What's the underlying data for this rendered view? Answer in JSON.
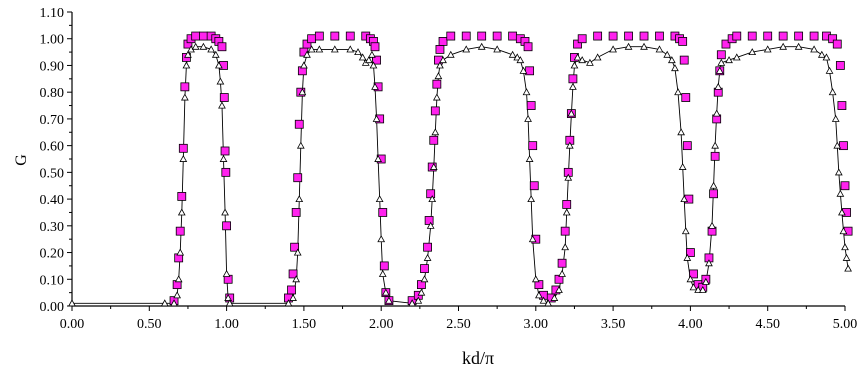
{
  "chart_data": {
    "type": "scatter",
    "title": "",
    "xlabel": "kd/π",
    "ylabel": "G",
    "xlim": [
      0,
      5
    ],
    "ylim": [
      0,
      1.1
    ],
    "x_ticks": [
      "0.00",
      "0.50",
      "1.00",
      "1.50",
      "2.00",
      "2.50",
      "3.00",
      "3.50",
      "4.00",
      "4.50",
      "5.00"
    ],
    "y_ticks": [
      "0.00",
      "0.10",
      "0.20",
      "0.30",
      "0.40",
      "0.50",
      "0.60",
      "0.70",
      "0.80",
      "0.90",
      "1.00",
      "1.10"
    ],
    "grid": false,
    "legend": "none",
    "series": [
      {
        "marker": "square",
        "color": "#ff22ee",
        "edge_color": "#000000",
        "line": false,
        "points": [
          [
            0.66,
            0.02
          ],
          [
            0.68,
            0.08
          ],
          [
            0.69,
            0.18
          ],
          [
            0.7,
            0.28
          ],
          [
            0.71,
            0.41
          ],
          [
            0.72,
            0.59
          ],
          [
            0.73,
            0.82
          ],
          [
            0.74,
            0.93
          ],
          [
            0.75,
            0.98
          ],
          [
            0.77,
            1.0
          ],
          [
            0.8,
            1.01
          ],
          [
            0.85,
            1.01
          ],
          [
            0.9,
            1.01
          ],
          [
            0.93,
            1.0
          ],
          [
            0.95,
            0.99
          ],
          [
            0.97,
            0.97
          ],
          [
            0.98,
            0.9
          ],
          [
            0.985,
            0.78
          ],
          [
            0.99,
            0.58
          ],
          [
            0.995,
            0.5
          ],
          [
            1.0,
            0.3
          ],
          [
            1.01,
            0.1
          ],
          [
            1.02,
            0.03
          ],
          [
            1.4,
            0.03
          ],
          [
            1.42,
            0.06
          ],
          [
            1.43,
            0.12
          ],
          [
            1.44,
            0.22
          ],
          [
            1.45,
            0.35
          ],
          [
            1.46,
            0.48
          ],
          [
            1.47,
            0.68
          ],
          [
            1.48,
            0.8
          ],
          [
            1.49,
            0.88
          ],
          [
            1.5,
            0.95
          ],
          [
            1.52,
            0.98
          ],
          [
            1.55,
            1.0
          ],
          [
            1.6,
            1.01
          ],
          [
            1.7,
            1.01
          ],
          [
            1.8,
            1.01
          ],
          [
            1.9,
            1.01
          ],
          [
            1.93,
            1.0
          ],
          [
            1.95,
            0.99
          ],
          [
            1.96,
            0.97
          ],
          [
            1.97,
            0.92
          ],
          [
            1.98,
            0.82
          ],
          [
            1.99,
            0.7
          ],
          [
            2.0,
            0.55
          ],
          [
            2.01,
            0.35
          ],
          [
            2.02,
            0.15
          ],
          [
            2.03,
            0.05
          ],
          [
            2.05,
            0.02
          ],
          [
            2.2,
            0.02
          ],
          [
            2.24,
            0.04
          ],
          [
            2.26,
            0.08
          ],
          [
            2.28,
            0.14
          ],
          [
            2.3,
            0.22
          ],
          [
            2.31,
            0.32
          ],
          [
            2.32,
            0.42
          ],
          [
            2.33,
            0.52
          ],
          [
            2.34,
            0.62
          ],
          [
            2.35,
            0.73
          ],
          [
            2.36,
            0.83
          ],
          [
            2.37,
            0.92
          ],
          [
            2.38,
            0.96
          ],
          [
            2.4,
            0.99
          ],
          [
            2.45,
            1.01
          ],
          [
            2.55,
            1.01
          ],
          [
            2.65,
            1.01
          ],
          [
            2.75,
            1.01
          ],
          [
            2.85,
            1.01
          ],
          [
            2.9,
            1.0
          ],
          [
            2.93,
            0.99
          ],
          [
            2.95,
            0.97
          ],
          [
            2.96,
            0.88
          ],
          [
            2.97,
            0.75
          ],
          [
            2.98,
            0.6
          ],
          [
            2.99,
            0.45
          ],
          [
            3.0,
            0.25
          ],
          [
            3.02,
            0.08
          ],
          [
            3.05,
            0.04
          ],
          [
            3.1,
            0.03
          ],
          [
            3.13,
            0.06
          ],
          [
            3.15,
            0.1
          ],
          [
            3.17,
            0.16
          ],
          [
            3.19,
            0.28
          ],
          [
            3.2,
            0.38
          ],
          [
            3.21,
            0.5
          ],
          [
            3.22,
            0.62
          ],
          [
            3.23,
            0.72
          ],
          [
            3.24,
            0.85
          ],
          [
            3.25,
            0.93
          ],
          [
            3.27,
            0.98
          ],
          [
            3.3,
            1.0
          ],
          [
            3.4,
            1.01
          ],
          [
            3.5,
            1.01
          ],
          [
            3.6,
            1.01
          ],
          [
            3.7,
            1.01
          ],
          [
            3.8,
            1.01
          ],
          [
            3.9,
            1.01
          ],
          [
            3.93,
            1.0
          ],
          [
            3.95,
            0.99
          ],
          [
            3.96,
            0.92
          ],
          [
            3.97,
            0.78
          ],
          [
            3.98,
            0.6
          ],
          [
            3.99,
            0.4
          ],
          [
            4.0,
            0.2
          ],
          [
            4.02,
            0.12
          ],
          [
            4.05,
            0.08
          ],
          [
            4.08,
            0.07
          ],
          [
            4.1,
            0.1
          ],
          [
            4.12,
            0.18
          ],
          [
            4.14,
            0.28
          ],
          [
            4.15,
            0.42
          ],
          [
            4.16,
            0.56
          ],
          [
            4.17,
            0.7
          ],
          [
            4.18,
            0.8
          ],
          [
            4.19,
            0.88
          ],
          [
            4.2,
            0.94
          ],
          [
            4.23,
            0.98
          ],
          [
            4.27,
            1.0
          ],
          [
            4.3,
            1.01
          ],
          [
            4.4,
            1.01
          ],
          [
            4.5,
            1.01
          ],
          [
            4.6,
            1.01
          ],
          [
            4.7,
            1.01
          ],
          [
            4.8,
            1.01
          ],
          [
            4.88,
            1.01
          ],
          [
            4.92,
            1.0
          ],
          [
            4.95,
            0.98
          ],
          [
            4.97,
            0.9
          ],
          [
            4.98,
            0.75
          ],
          [
            4.99,
            0.6
          ],
          [
            5.0,
            0.45
          ],
          [
            5.01,
            0.35
          ],
          [
            5.02,
            0.28
          ]
        ]
      },
      {
        "marker": "triangle",
        "color": "#000000",
        "edge_color": "#000000",
        "line": true,
        "points": [
          [
            0.0,
            0.01
          ],
          [
            0.6,
            0.01
          ],
          [
            0.66,
            0.01
          ],
          [
            0.68,
            0.04
          ],
          [
            0.69,
            0.1
          ],
          [
            0.7,
            0.2
          ],
          [
            0.71,
            0.35
          ],
          [
            0.72,
            0.55
          ],
          [
            0.73,
            0.78
          ],
          [
            0.74,
            0.9
          ],
          [
            0.75,
            0.94
          ],
          [
            0.77,
            0.96
          ],
          [
            0.8,
            0.97
          ],
          [
            0.85,
            0.97
          ],
          [
            0.9,
            0.96
          ],
          [
            0.93,
            0.94
          ],
          [
            0.95,
            0.9
          ],
          [
            0.96,
            0.84
          ],
          [
            0.97,
            0.75
          ],
          [
            0.98,
            0.55
          ],
          [
            0.99,
            0.35
          ],
          [
            1.0,
            0.12
          ],
          [
            1.01,
            0.03
          ],
          [
            1.02,
            0.01
          ],
          [
            1.4,
            0.01
          ],
          [
            1.43,
            0.03
          ],
          [
            1.45,
            0.1
          ],
          [
            1.46,
            0.2
          ],
          [
            1.47,
            0.4
          ],
          [
            1.48,
            0.6
          ],
          [
            1.49,
            0.8
          ],
          [
            1.5,
            0.9
          ],
          [
            1.52,
            0.94
          ],
          [
            1.55,
            0.96
          ],
          [
            1.6,
            0.96
          ],
          [
            1.7,
            0.96
          ],
          [
            1.8,
            0.96
          ],
          [
            1.85,
            0.95
          ],
          [
            1.88,
            0.93
          ],
          [
            1.9,
            0.91
          ],
          [
            1.92,
            0.92
          ],
          [
            1.94,
            0.94
          ],
          [
            1.95,
            0.9
          ],
          [
            1.96,
            0.82
          ],
          [
            1.97,
            0.7
          ],
          [
            1.98,
            0.55
          ],
          [
            1.99,
            0.4
          ],
          [
            2.0,
            0.25
          ],
          [
            2.01,
            0.12
          ],
          [
            2.03,
            0.05
          ],
          [
            2.05,
            0.02
          ],
          [
            2.2,
            0.01
          ],
          [
            2.24,
            0.02
          ],
          [
            2.26,
            0.05
          ],
          [
            2.28,
            0.1
          ],
          [
            2.3,
            0.18
          ],
          [
            2.32,
            0.3
          ],
          [
            2.33,
            0.4
          ],
          [
            2.34,
            0.52
          ],
          [
            2.35,
            0.65
          ],
          [
            2.36,
            0.78
          ],
          [
            2.37,
            0.86
          ],
          [
            2.38,
            0.9
          ],
          [
            2.4,
            0.92
          ],
          [
            2.45,
            0.94
          ],
          [
            2.55,
            0.96
          ],
          [
            2.65,
            0.97
          ],
          [
            2.75,
            0.96
          ],
          [
            2.85,
            0.94
          ],
          [
            2.88,
            0.93
          ],
          [
            2.9,
            0.92
          ],
          [
            2.92,
            0.88
          ],
          [
            2.94,
            0.8
          ],
          [
            2.95,
            0.7
          ],
          [
            2.96,
            0.55
          ],
          [
            2.97,
            0.4
          ],
          [
            2.98,
            0.25
          ],
          [
            3.0,
            0.1
          ],
          [
            3.02,
            0.04
          ],
          [
            3.05,
            0.02
          ],
          [
            3.08,
            0.01
          ],
          [
            3.12,
            0.03
          ],
          [
            3.15,
            0.06
          ],
          [
            3.17,
            0.12
          ],
          [
            3.19,
            0.22
          ],
          [
            3.2,
            0.35
          ],
          [
            3.21,
            0.48
          ],
          [
            3.22,
            0.6
          ],
          [
            3.23,
            0.72
          ],
          [
            3.24,
            0.82
          ],
          [
            3.25,
            0.9
          ],
          [
            3.27,
            0.93
          ],
          [
            3.3,
            0.92
          ],
          [
            3.35,
            0.91
          ],
          [
            3.4,
            0.93
          ],
          [
            3.5,
            0.96
          ],
          [
            3.6,
            0.97
          ],
          [
            3.7,
            0.97
          ],
          [
            3.8,
            0.96
          ],
          [
            3.85,
            0.94
          ],
          [
            3.88,
            0.92
          ],
          [
            3.9,
            0.89
          ],
          [
            3.92,
            0.8
          ],
          [
            3.94,
            0.65
          ],
          [
            3.95,
            0.52
          ],
          [
            3.96,
            0.4
          ],
          [
            3.97,
            0.28
          ],
          [
            3.98,
            0.18
          ],
          [
            4.0,
            0.1
          ],
          [
            4.02,
            0.07
          ],
          [
            4.05,
            0.06
          ],
          [
            4.08,
            0.06
          ],
          [
            4.1,
            0.09
          ],
          [
            4.12,
            0.16
          ],
          [
            4.14,
            0.3
          ],
          [
            4.15,
            0.45
          ],
          [
            4.16,
            0.6
          ],
          [
            4.17,
            0.72
          ],
          [
            4.18,
            0.82
          ],
          [
            4.19,
            0.88
          ],
          [
            4.2,
            0.91
          ],
          [
            4.25,
            0.92
          ],
          [
            4.3,
            0.93
          ],
          [
            4.4,
            0.95
          ],
          [
            4.5,
            0.96
          ],
          [
            4.6,
            0.97
          ],
          [
            4.7,
            0.97
          ],
          [
            4.8,
            0.96
          ],
          [
            4.85,
            0.94
          ],
          [
            4.88,
            0.93
          ],
          [
            4.9,
            0.88
          ],
          [
            4.92,
            0.8
          ],
          [
            4.94,
            0.7
          ],
          [
            4.95,
            0.6
          ],
          [
            4.96,
            0.5
          ],
          [
            4.97,
            0.42
          ],
          [
            4.98,
            0.35
          ],
          [
            4.99,
            0.28
          ],
          [
            5.0,
            0.22
          ],
          [
            5.01,
            0.18
          ],
          [
            5.02,
            0.14
          ]
        ]
      }
    ]
  }
}
